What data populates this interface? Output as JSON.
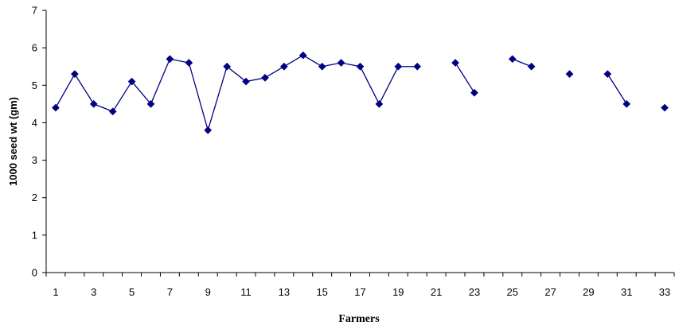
{
  "chart_data": {
    "type": "line",
    "title": "",
    "xlabel": "Farmers",
    "ylabel": "1000 seed wt (gm)",
    "xlim": [
      1,
      33
    ],
    "ylim": [
      0,
      7
    ],
    "x_tick_labels": [
      "1",
      "3",
      "5",
      "7",
      "9",
      "11",
      "13",
      "15",
      "17",
      "19",
      "21",
      "23",
      "25",
      "27",
      "29",
      "31",
      "33"
    ],
    "y_tick_labels": [
      "0",
      "1",
      "2",
      "3",
      "4",
      "5",
      "6",
      "7"
    ],
    "grid": false,
    "legend": "none",
    "series": [
      {
        "color": "#000080",
        "marker": "diamond",
        "x": [
          1,
          2,
          3,
          4,
          5,
          6,
          7,
          8,
          9,
          10,
          11,
          12,
          13,
          14,
          15,
          16,
          17,
          18,
          19,
          20,
          21,
          22,
          23,
          24,
          25,
          26,
          27,
          28,
          29,
          30,
          31,
          32,
          33
        ],
        "values": [
          4.4,
          5.3,
          4.5,
          4.3,
          5.1,
          4.5,
          5.7,
          5.6,
          3.8,
          5.5,
          5.1,
          5.2,
          5.5,
          5.8,
          5.5,
          5.6,
          5.5,
          4.5,
          5.5,
          5.5,
          null,
          5.6,
          4.8,
          null,
          5.7,
          5.5,
          null,
          5.3,
          null,
          5.3,
          4.5,
          null,
          4.4
        ]
      }
    ]
  }
}
